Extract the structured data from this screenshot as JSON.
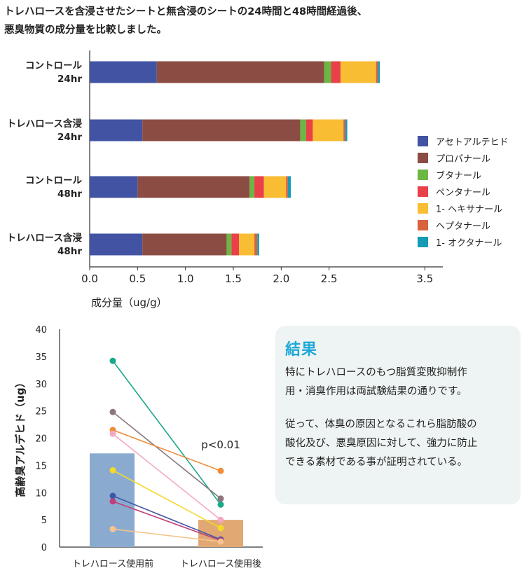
{
  "intro": {
    "line1": "トレハロースを含浸させたシートと無含浸のシートの24時間と48時間経過後、",
    "line2": "悪臭物質の成分量を比較しました。"
  },
  "result": {
    "title": "結果",
    "para1_line1": "特にトレハロースのもつ脂質変敗抑制作",
    "para1_line2": "用・消臭作用は両試験結果の通りです。",
    "para2_line1": "従って、体臭の原因となるこれら脂肪酸の",
    "para2_line2": "酸化及び、悪臭原因に対して、強力に防止",
    "para2_line3": "できる素材である事が証明されている。"
  },
  "chart_data": [
    {
      "type": "bar",
      "orientation": "horizontal",
      "stacked": true,
      "categories": [
        [
          "コントロール",
          "24hr"
        ],
        [
          "トレハロース含浸",
          "24hr"
        ],
        [
          "コントロール",
          "48hr"
        ],
        [
          "トレハロース含浸",
          "48hr"
        ]
      ],
      "series": [
        {
          "name": "アセトアルテヒド",
          "color": "#4253a3",
          "values": [
            0.7,
            0.55,
            0.5,
            0.55
          ]
        },
        {
          "name": "プロパナール",
          "color": "#8b4d43",
          "values": [
            1.75,
            1.65,
            1.17,
            0.88
          ]
        },
        {
          "name": "ブタナール",
          "color": "#6cb744",
          "values": [
            0.07,
            0.06,
            0.05,
            0.05
          ]
        },
        {
          "name": "ペンタナール",
          "color": "#e84149",
          "values": [
            0.1,
            0.07,
            0.1,
            0.08
          ]
        },
        {
          "name": "1- ヘキサナール",
          "color": "#f9bd33",
          "values": [
            0.37,
            0.32,
            0.23,
            0.16
          ]
        },
        {
          "name": "ヘプタナール",
          "color": "#d8633d",
          "values": [
            0.02,
            0.02,
            0.02,
            0.03
          ]
        },
        {
          "name": "1- オクタナール",
          "color": "#169bb5",
          "values": [
            0.02,
            0.02,
            0.03,
            0.02
          ]
        }
      ],
      "xlabel": "成分量（ug/g）",
      "xlim": [
        0,
        3.6
      ],
      "xticks": [
        "0.0",
        "0.5",
        "1.0",
        "1.5",
        "2.0",
        "2.5",
        "3.5"
      ],
      "xtick_values": [
        0,
        0.5,
        1.0,
        1.5,
        2.0,
        2.5,
        3.5
      ],
      "legend_position": "right",
      "grid": false
    },
    {
      "type": "bar",
      "overlay": "paired-lines",
      "categories": [
        "トレハロース使用前",
        "トレハロース使用後"
      ],
      "bar_values": [
        17.2,
        5.0
      ],
      "bar_colors": [
        "#8aabcf",
        "#e2a873"
      ],
      "ylabel": "高齢臭アルデヒド（ug）",
      "ylim": [
        0,
        40
      ],
      "yticks": [
        0,
        5,
        10,
        15,
        20,
        25,
        30,
        35,
        40
      ],
      "annotation": "p<0.01",
      "pairs": [
        {
          "before": 34.2,
          "after": 7.8,
          "color": "#1aa88a"
        },
        {
          "before": 24.8,
          "after": 8.9,
          "color": "#8a767c"
        },
        {
          "before": 21.5,
          "after": 14.0,
          "color": "#f08c3a"
        },
        {
          "before": 20.8,
          "after": 5.0,
          "color": "#f4a9c3"
        },
        {
          "before": 14.1,
          "after": 3.5,
          "color": "#f3d92d"
        },
        {
          "before": 9.4,
          "after": 1.4,
          "color": "#3f58a6"
        },
        {
          "before": 8.4,
          "after": 1.2,
          "color": "#bf3f7b"
        },
        {
          "before": 3.3,
          "after": 1.0,
          "color": "#f5c48f"
        }
      ],
      "grid": false
    }
  ]
}
